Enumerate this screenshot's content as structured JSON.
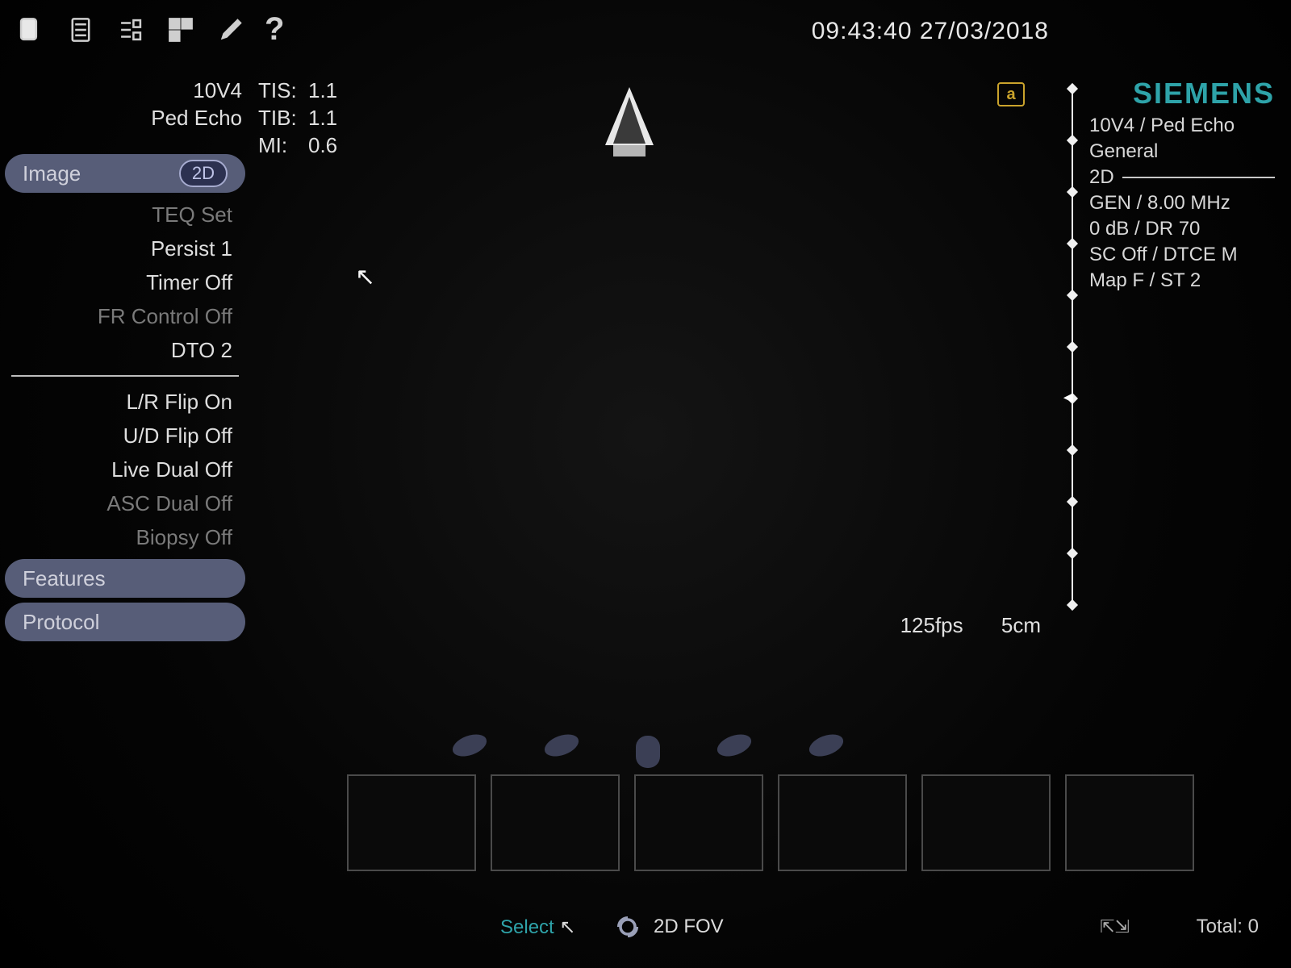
{
  "datetime": "09:43:40 27/03/2018",
  "probe": {
    "name": "10V4",
    "preset": "Ped Echo"
  },
  "indices": {
    "tis_label": "TIS:",
    "tis": "1.1",
    "tib_label": "TIB:",
    "tib": "1.1",
    "mi_label": "MI:",
    "mi": "0.6"
  },
  "menu": {
    "image": {
      "label": "Image",
      "badge": "2D"
    },
    "group1": [
      "TEQ Set",
      "Persist 1",
      "Timer Off",
      "FR Control Off",
      "DTO 2"
    ],
    "group1_dim": [
      0,
      3
    ],
    "group2": [
      "L/R Flip On",
      "U/D Flip Off",
      "Live Dual Off",
      "ASC Dual Off",
      "Biopsy Off"
    ],
    "group2_dim": [
      3,
      4
    ],
    "features": "Features",
    "protocol": "Protocol"
  },
  "right": {
    "brand": "SIEMENS",
    "line1": "10V4 / Ped Echo",
    "line2": "General",
    "mode": "2D",
    "p1": "GEN / 8.00 MHz",
    "p2": "0 dB / DR 70",
    "p3": "SC Off / DTCE M",
    "p4": "Map F / ST 2"
  },
  "orientation_marker": "a",
  "ruler": {
    "ticks": 11,
    "focus_index": 6
  },
  "readout": {
    "fps": "125fps",
    "depth": "5cm"
  },
  "thumbnails": 6,
  "footer": {
    "select": "Select",
    "fov": "2D FOV",
    "zoom_icon": "⇱⇲",
    "total": "Total: 0"
  },
  "colors": {
    "brand": "#2ea3a9",
    "pill": "#575d78",
    "orient": "#caa32c"
  }
}
